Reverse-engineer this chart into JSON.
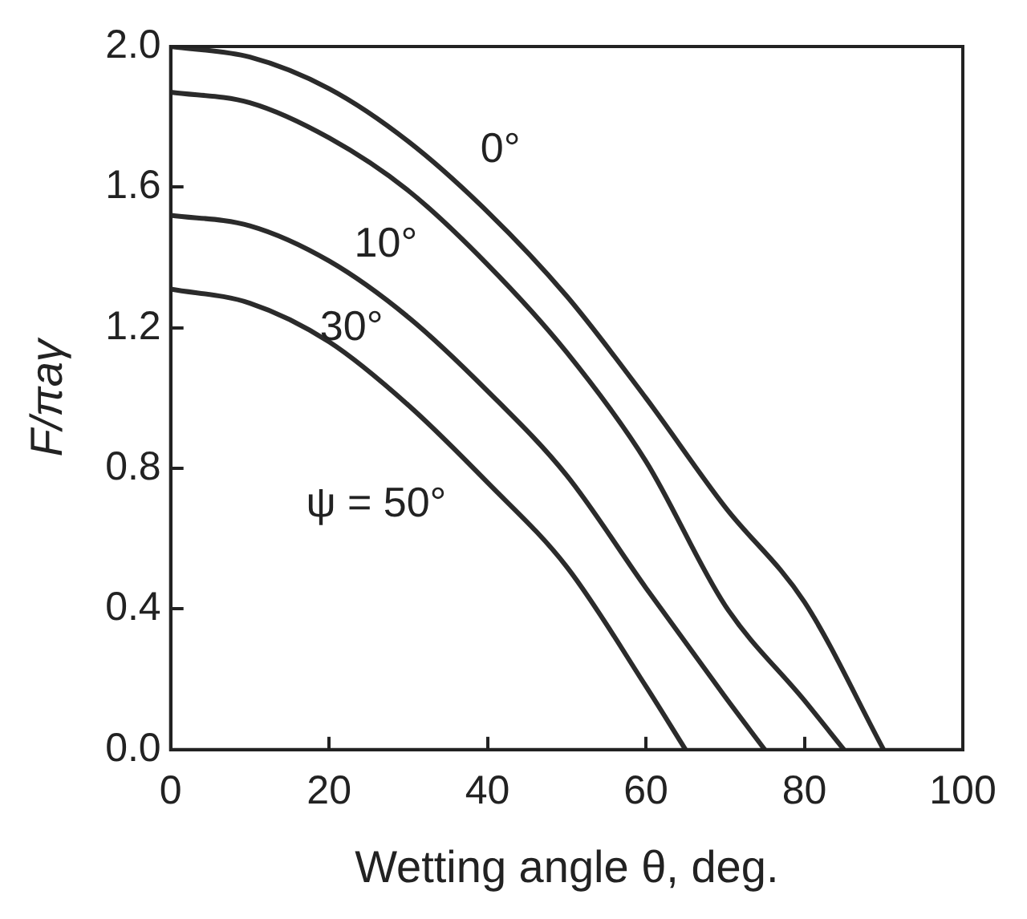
{
  "chart_data": {
    "type": "line",
    "xlabel": "Wetting angle θ, deg.",
    "ylabel": "F/πaγ",
    "xlim": [
      0,
      100
    ],
    "xticks": [
      0,
      20,
      40,
      60,
      80,
      100
    ],
    "ylim": [
      0,
      2
    ],
    "yticks": [
      {
        "value": 0,
        "label": "0.0"
      },
      {
        "value": 0.4,
        "label": "0.4"
      },
      {
        "value": 0.8,
        "label": "0.8"
      },
      {
        "value": 1.2,
        "label": "1.2"
      },
      {
        "value": 1.6,
        "label": "1.6"
      },
      {
        "value": 2,
        "label": "2.0"
      }
    ],
    "grid": false,
    "legend": false,
    "marker": "none",
    "line_style": "solid",
    "series": [
      {
        "name": "0°",
        "color": "#2b2b2b",
        "x": [
          0,
          10,
          20,
          30,
          40,
          50,
          60,
          70,
          80,
          90
        ],
        "values": [
          2,
          1.97,
          1.88,
          1.73,
          1.53,
          1.29,
          1.0,
          0.69,
          0.42,
          0
        ]
      },
      {
        "name": "10°",
        "color": "#2b2b2b",
        "x": [
          0,
          10,
          20,
          30,
          40,
          50,
          60,
          70,
          80,
          85
        ],
        "values": [
          1.87,
          1.84,
          1.74,
          1.59,
          1.38,
          1.13,
          0.82,
          0.41,
          0.14,
          0
        ]
      },
      {
        "name": "30°",
        "color": "#2b2b2b",
        "x": [
          0,
          10,
          20,
          30,
          40,
          50,
          60,
          70,
          75
        ],
        "values": [
          1.52,
          1.49,
          1.39,
          1.23,
          1.02,
          0.78,
          0.46,
          0.15,
          0
        ]
      },
      {
        "name": "ψ = 50°",
        "color": "#2b2b2b",
        "x": [
          0,
          10,
          20,
          30,
          40,
          50,
          60,
          65
        ],
        "values": [
          1.31,
          1.27,
          1.16,
          0.98,
          0.76,
          0.52,
          0.18,
          0
        ]
      }
    ]
  }
}
